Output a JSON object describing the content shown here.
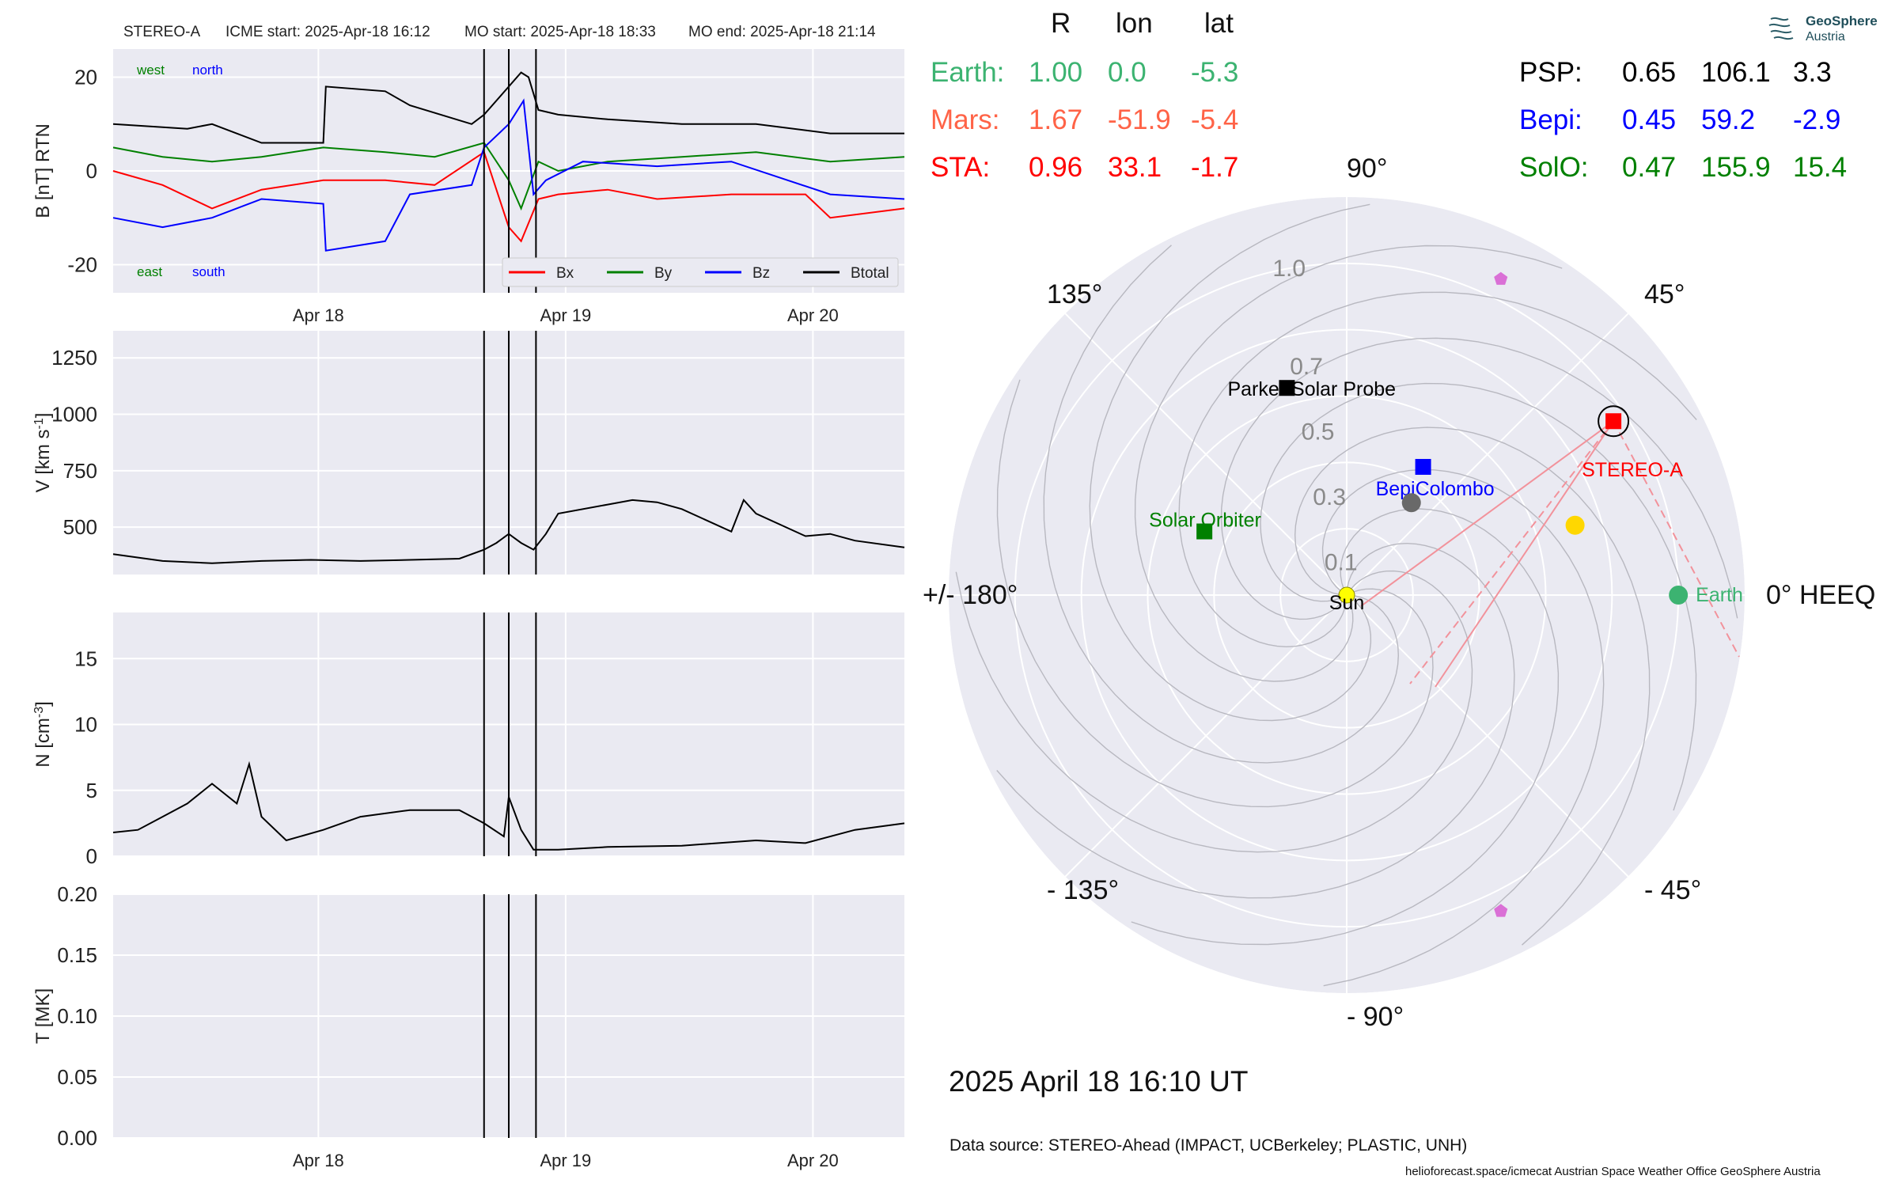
{
  "header": {
    "spacecraft": "STEREO-A",
    "icme_start": "ICME start: 2025-Apr-18 16:12",
    "mo_start": "MO start: 2025-Apr-18 18:33",
    "mo_end": "MO end: 2025-Apr-18 21:14"
  },
  "positions": {
    "columns": [
      "R",
      "lon",
      "lat"
    ],
    "left": [
      {
        "label": "Earth:",
        "R": "1.00",
        "lon": "0.0",
        "lat": "-5.3",
        "color": "#3cb371"
      },
      {
        "label": "Mars:",
        "R": "1.67",
        "lon": "-51.9",
        "lat": "-5.4",
        "color": "#ff6347"
      },
      {
        "label": "STA:",
        "R": "0.96",
        "lon": "33.1",
        "lat": "-1.7",
        "color": "#ff0000"
      }
    ],
    "right": [
      {
        "label": "PSP:",
        "R": "0.65",
        "lon": "106.1",
        "lat": "3.3",
        "color": "#000000"
      },
      {
        "label": "Bepi:",
        "R": "0.45",
        "lon": "59.2",
        "lat": "-2.9",
        "color": "#0000ff"
      },
      {
        "label": "SolO:",
        "R": "0.47",
        "lon": "155.9",
        "lat": "15.4",
        "color": "#008000"
      }
    ]
  },
  "logo": {
    "line1": "GeoSphere",
    "line2": "Austria"
  },
  "date_text": "2025 April 18  16:10 UT",
  "data_source": "Data source: STEREO-Ahead (IMPACT, UCBerkeley; PLASTIC, UNH)",
  "footer": "helioforecast.space/icmecat   Austrian Space Weather Office   GeoSphere Austria",
  "colors": {
    "panel_bg": "#eaeaf2",
    "grid": "#ffffff",
    "bx": "#ff0000",
    "by": "#008000",
    "bz": "#0000ff",
    "btotal": "#000000"
  },
  "chart_data": [
    {
      "type": "line",
      "panel": "magnetic field",
      "ylabel": "B [nT] RTN",
      "ylim": [
        -26,
        26
      ],
      "yticks": [
        -20,
        0,
        20
      ],
      "xlim": [
        0,
        3.2
      ],
      "xticks": [
        {
          "value": 0.83,
          "label": "Apr 18"
        },
        {
          "value": 1.83,
          "label": "Apr 19"
        },
        {
          "value": 2.83,
          "label": "Apr 20"
        }
      ],
      "vlines": [
        1.5,
        1.6,
        1.71
      ],
      "annotations": {
        "top_left": [
          "west",
          "north"
        ],
        "bottom_left": [
          "east",
          "south"
        ]
      },
      "legend": {
        "placement": "lower-right",
        "entries": [
          "Bx",
          "By",
          "Bz",
          "Btotal"
        ]
      },
      "series": [
        {
          "name": "Btotal",
          "color": "#000000",
          "x": [
            0,
            0.3,
            0.4,
            0.6,
            0.85,
            0.86,
            1.1,
            1.2,
            1.45,
            1.5,
            1.6,
            1.65,
            1.68,
            1.72,
            1.8,
            2.0,
            2.3,
            2.6,
            2.9,
            3.2
          ],
          "y": [
            10,
            9,
            10,
            6,
            6,
            18,
            17,
            14,
            10,
            12,
            18,
            21,
            20,
            13,
            12,
            11,
            10,
            10,
            8,
            8
          ]
        },
        {
          "name": "Bx",
          "color": "#ff0000",
          "x": [
            0,
            0.2,
            0.4,
            0.6,
            0.85,
            1.1,
            1.3,
            1.5,
            1.6,
            1.65,
            1.72,
            1.8,
            2.0,
            2.2,
            2.5,
            2.8,
            2.9,
            3.2
          ],
          "y": [
            0,
            -3,
            -8,
            -4,
            -2,
            -2,
            -3,
            4,
            -12,
            -15,
            -6,
            -5,
            -4,
            -6,
            -5,
            -5,
            -10,
            -8
          ]
        },
        {
          "name": "By",
          "color": "#008000",
          "x": [
            0,
            0.2,
            0.4,
            0.6,
            0.85,
            1.1,
            1.3,
            1.5,
            1.6,
            1.65,
            1.72,
            1.8,
            2.0,
            2.3,
            2.6,
            2.9,
            3.2
          ],
          "y": [
            5,
            3,
            2,
            3,
            5,
            4,
            3,
            6,
            -2,
            -8,
            2,
            0,
            2,
            3,
            4,
            2,
            3
          ]
        },
        {
          "name": "Bz",
          "color": "#0000ff",
          "x": [
            0,
            0.2,
            0.4,
            0.6,
            0.85,
            0.86,
            1.1,
            1.2,
            1.45,
            1.5,
            1.6,
            1.66,
            1.7,
            1.75,
            1.9,
            2.2,
            2.5,
            2.9,
            3.2
          ],
          "y": [
            -10,
            -12,
            -10,
            -6,
            -7,
            -17,
            -15,
            -5,
            -3,
            5,
            10,
            15,
            -5,
            -2,
            2,
            1,
            2,
            -5,
            -6
          ]
        }
      ]
    },
    {
      "type": "line",
      "panel": "speed",
      "ylabel": "V [km s^-1]",
      "ylim": [
        290,
        1370
      ],
      "yticks": [
        500,
        750,
        1000,
        1250
      ],
      "xlim": [
        0,
        3.2
      ],
      "vlines": [
        1.5,
        1.6,
        1.71
      ],
      "series": [
        {
          "name": "V",
          "color": "#000000",
          "x": [
            0,
            0.2,
            0.4,
            0.6,
            0.8,
            1.0,
            1.2,
            1.4,
            1.5,
            1.55,
            1.6,
            1.65,
            1.7,
            1.75,
            1.8,
            2.0,
            2.1,
            2.2,
            2.3,
            2.5,
            2.55,
            2.6,
            2.8,
            2.9,
            3.0,
            3.2
          ],
          "y": [
            380,
            350,
            340,
            350,
            355,
            350,
            355,
            360,
            400,
            430,
            470,
            430,
            400,
            470,
            560,
            600,
            620,
            610,
            580,
            480,
            620,
            560,
            460,
            470,
            440,
            410
          ]
        }
      ]
    },
    {
      "type": "line",
      "panel": "density",
      "ylabel": "N [cm^-3]",
      "ylim": [
        0,
        18.5
      ],
      "yticks": [
        0,
        5,
        10,
        15
      ],
      "xlim": [
        0,
        3.2
      ],
      "vlines": [
        1.5,
        1.6,
        1.71
      ],
      "series": [
        {
          "name": "N",
          "color": "#000000",
          "x": [
            0,
            0.1,
            0.2,
            0.3,
            0.4,
            0.5,
            0.55,
            0.6,
            0.7,
            0.85,
            1.0,
            1.2,
            1.4,
            1.5,
            1.58,
            1.6,
            1.65,
            1.7,
            1.8,
            2.0,
            2.3,
            2.6,
            2.8,
            3.0,
            3.2
          ],
          "y": [
            1.8,
            2.0,
            3.0,
            4.0,
            5.5,
            4.0,
            7.0,
            3.0,
            1.2,
            2.0,
            3.0,
            3.5,
            3.5,
            2.5,
            1.5,
            4.5,
            2.0,
            0.5,
            0.5,
            0.7,
            0.8,
            1.2,
            1.0,
            2.0,
            2.5
          ]
        }
      ]
    },
    {
      "type": "line",
      "panel": "temperature",
      "ylabel": "T [MK]",
      "ylim": [
        0,
        0.2
      ],
      "yticks": [
        0.0,
        0.05,
        0.1,
        0.15,
        0.2
      ],
      "ytick_labels": [
        "0.00",
        "0.05",
        "0.10",
        "0.15",
        "0.20"
      ],
      "xlim": [
        0,
        3.2
      ],
      "xticks": [
        {
          "value": 0.83,
          "label": "Apr 18"
        },
        {
          "value": 1.83,
          "label": "Apr 19"
        },
        {
          "value": 2.83,
          "label": "Apr 20"
        }
      ],
      "vlines": [
        1.5,
        1.6,
        1.71
      ],
      "series": []
    },
    {
      "type": "scatter",
      "panel": "polar position plot (HEEQ)",
      "rmax": 1.2,
      "radial_ticks": [
        {
          "value": 0.1,
          "label": "0.1"
        },
        {
          "value": 0.3,
          "label": "0.3"
        },
        {
          "value": 0.5,
          "label": "0.5"
        },
        {
          "value": 0.7,
          "label": "0.7"
        },
        {
          "value": 1.0,
          "label": "1.0"
        }
      ],
      "angle_labels": [
        {
          "deg": 0,
          "label": "0° HEEQ"
        },
        {
          "deg": 45,
          "label": "45°"
        },
        {
          "deg": 90,
          "label": "90°"
        },
        {
          "deg": 135,
          "label": "135°"
        },
        {
          "deg": 180,
          "label": "+/- 180°"
        },
        {
          "deg": -135,
          "label": "- 135°"
        },
        {
          "deg": -90,
          "label": "- 90°"
        },
        {
          "deg": -45,
          "label": "- 45°"
        }
      ],
      "points": [
        {
          "name": "Sun",
          "label": "Sun",
          "r": 0.0,
          "lon": 0.0,
          "marker": "circle",
          "color": "#ffff00"
        },
        {
          "name": "Earth",
          "label": "Earth",
          "r": 1.0,
          "lon": 0.0,
          "marker": "circle",
          "color": "#3cb371"
        },
        {
          "name": "STEREO-A",
          "label": "STEREO-A",
          "r": 0.96,
          "lon": 33.1,
          "marker": "square",
          "color": "#ff0000"
        },
        {
          "name": "Parker Solar Probe",
          "label": "Parker Solar Probe",
          "r": 0.65,
          "lon": 106.1,
          "marker": "square",
          "color": "#000000"
        },
        {
          "name": "BepiColombo",
          "label": "BepiColombo",
          "r": 0.45,
          "lon": 59.2,
          "marker": "square",
          "color": "#0000ff"
        },
        {
          "name": "Solar Orbiter",
          "label": "Solar Orbiter",
          "r": 0.47,
          "lon": 155.9,
          "marker": "square",
          "color": "#008000"
        },
        {
          "name": "Mercury",
          "label": "",
          "r": 0.34,
          "lon": 55.0,
          "marker": "circle",
          "color": "#696969"
        },
        {
          "name": "Venus",
          "label": "",
          "r": 0.72,
          "lon": 17.0,
          "marker": "circle",
          "color": "#ffd700"
        },
        {
          "name": "JUICE",
          "label": "",
          "r": 1.06,
          "lon": 64.0,
          "marker": "pentagon",
          "color": "#da70d6"
        },
        {
          "name": "Europa Clipper",
          "label": "",
          "r": 1.06,
          "lon": -64.0,
          "marker": "pentagon",
          "color": "#da70d6"
        }
      ]
    }
  ]
}
